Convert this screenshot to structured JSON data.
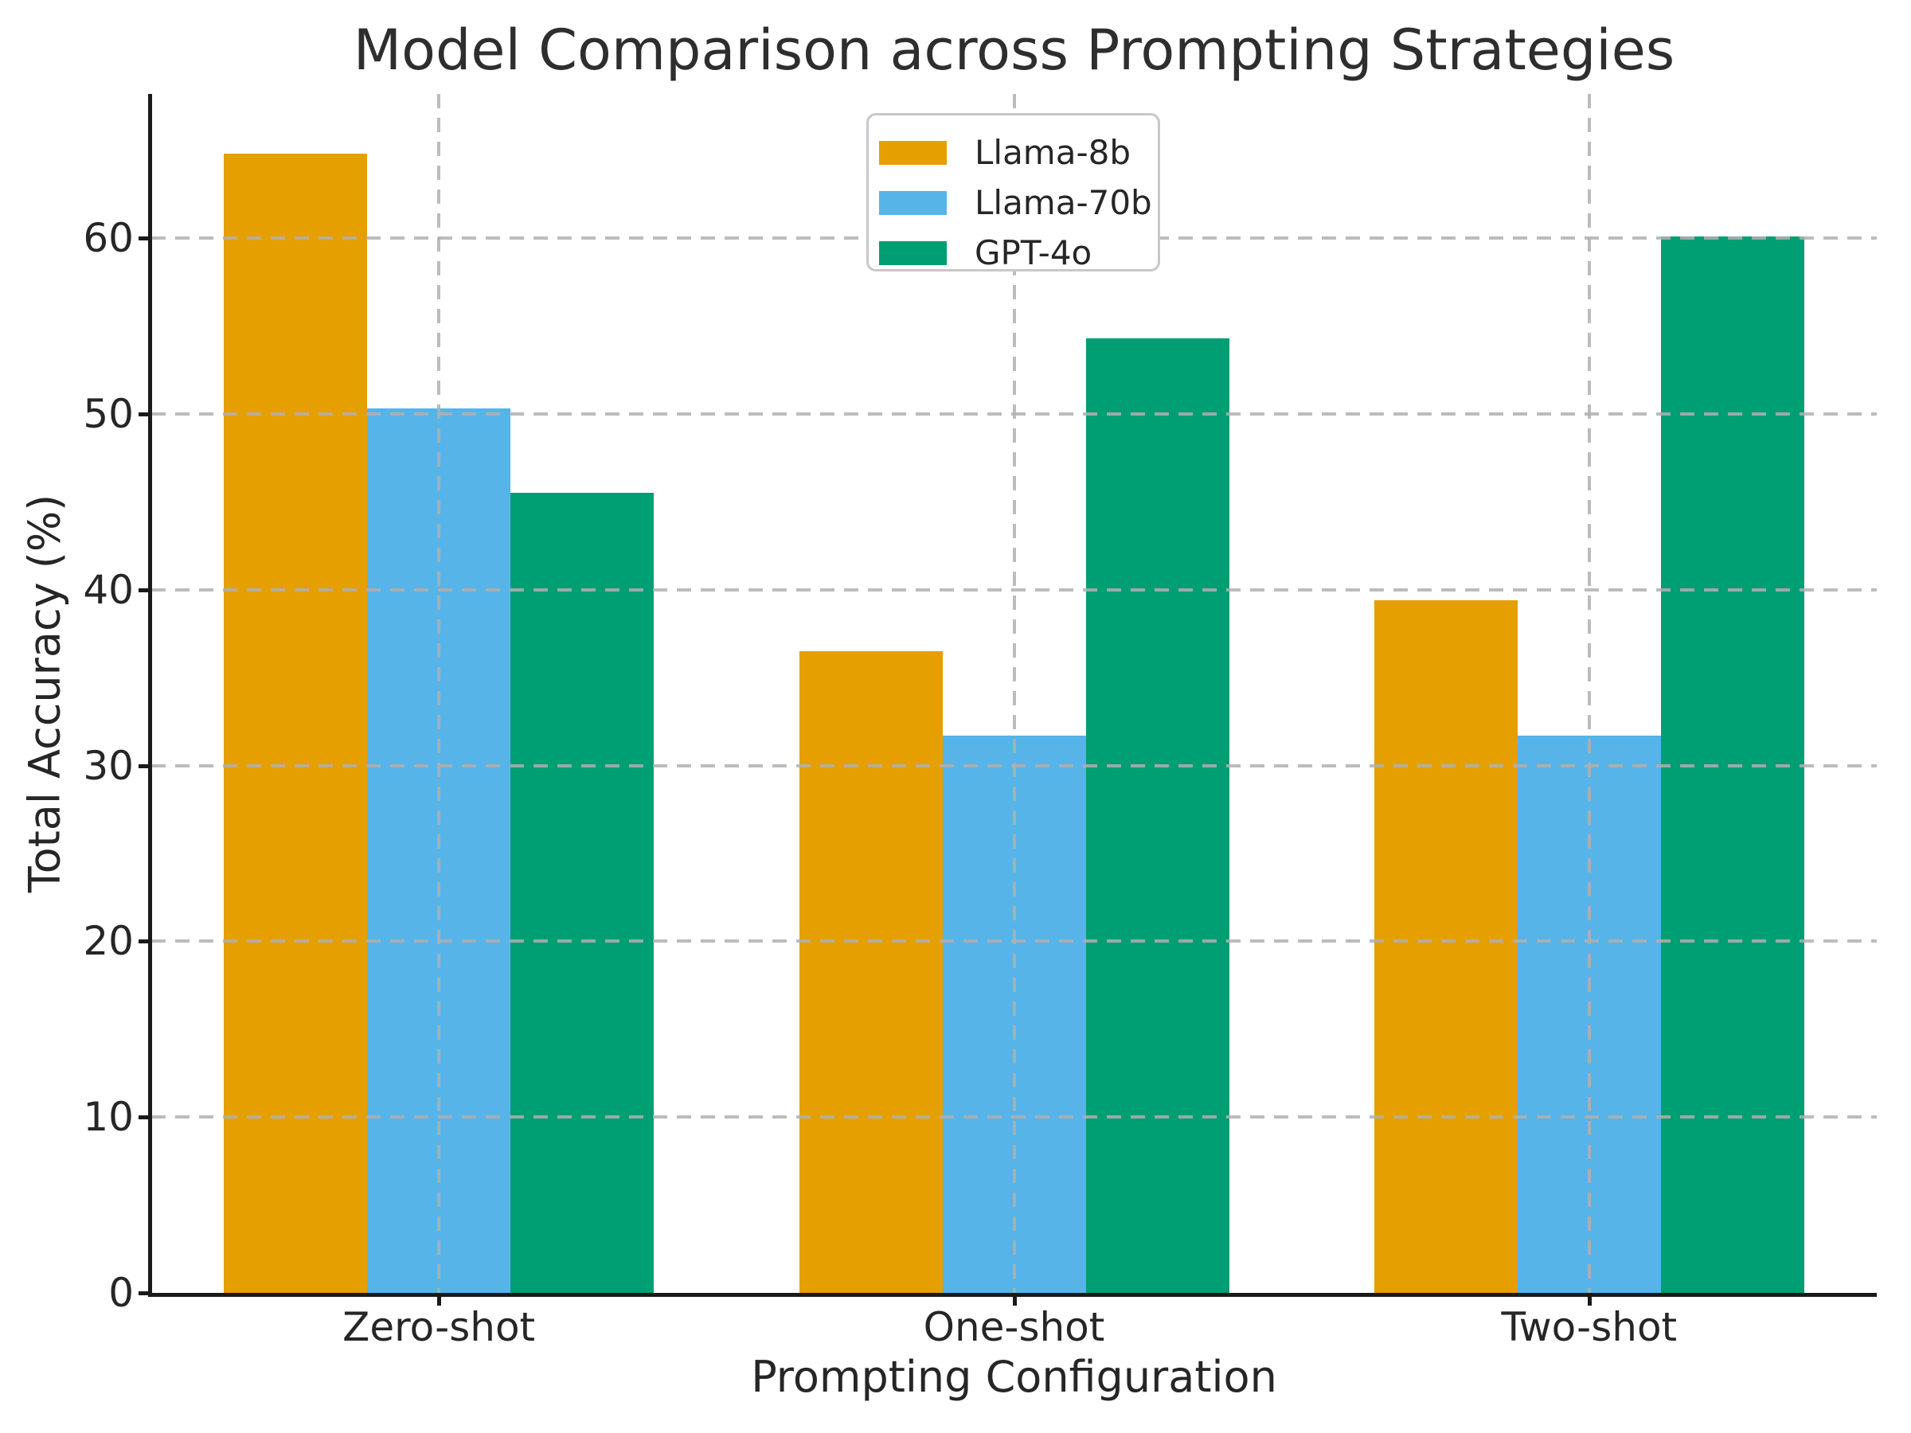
{
  "chart_data": {
    "type": "bar",
    "title": "Model Comparison across Prompting Strategies",
    "xlabel": "Prompting Configuration",
    "ylabel": "Total Accuracy (%)",
    "categories": [
      "Zero-shot",
      "One-shot",
      "Two-shot"
    ],
    "series": [
      {
        "name": "Llama-8b",
        "color": "#E69F00",
        "values": [
          64.8,
          36.5,
          39.4
        ]
      },
      {
        "name": "Llama-70b",
        "color": "#56B4E9",
        "values": [
          50.3,
          31.7,
          31.7
        ]
      },
      {
        "name": "GPT-4o",
        "color": "#009E73",
        "values": [
          45.5,
          54.3,
          60.1
        ]
      }
    ],
    "yticks": [
      0,
      10,
      20,
      30,
      40,
      50,
      60
    ],
    "ylim": [
      0,
      68.2
    ],
    "grid": {
      "visible": true,
      "style": "dashed",
      "axes": "both",
      "color": "#b0b0b0",
      "drawn_over_bars": true
    },
    "legend": {
      "position": "upper center",
      "border_color": "#c8c8c8",
      "background": "#ffffff"
    },
    "colors": {
      "spine": "#1a1a1a",
      "text": "#262626",
      "background": "#ffffff"
    }
  }
}
